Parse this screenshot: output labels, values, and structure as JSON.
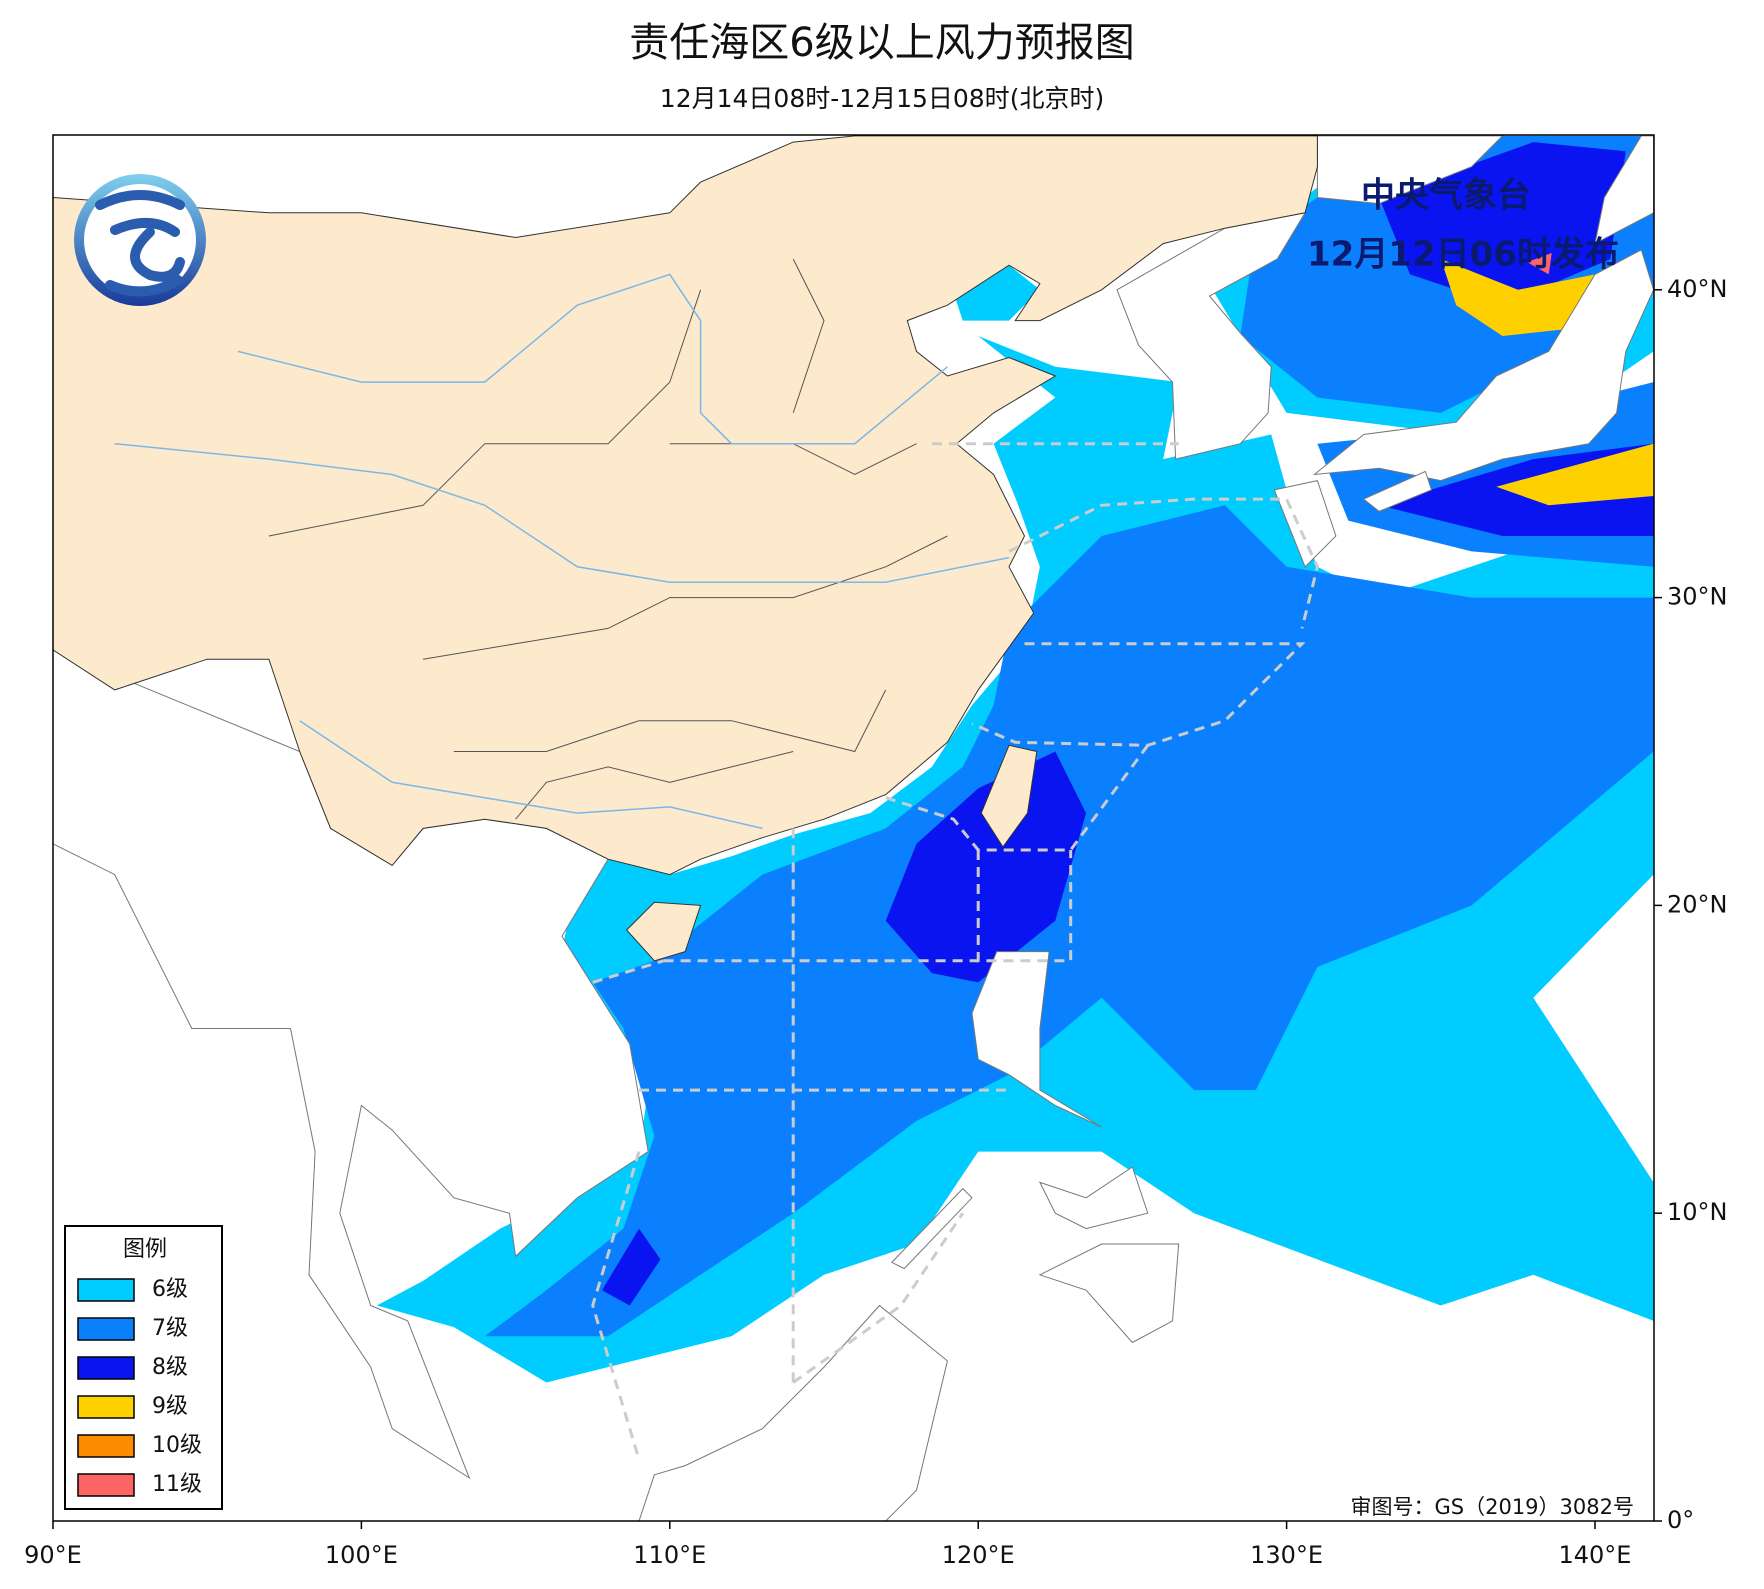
{
  "title": "责任海区6级以上风力预报图",
  "subtitle": "12月14日08时-12月15日08时(北京时)",
  "issuer": "中央气象台",
  "issued": "12月12日06时发布",
  "legend": {
    "title": "图例",
    "items": [
      {
        "label": "6级",
        "color": "#00CCFF"
      },
      {
        "label": "7级",
        "color": "#0A80FF"
      },
      {
        "label": "8级",
        "color": "#0A14F0"
      },
      {
        "label": "9级",
        "color": "#FFD000"
      },
      {
        "label": "10级",
        "color": "#FF8C00"
      },
      {
        "label": "11级",
        "color": "#FF6464"
      }
    ]
  },
  "lon_ticks": [
    {
      "value": 90,
      "label": "90°E"
    },
    {
      "value": 100,
      "label": "100°E"
    },
    {
      "value": 110,
      "label": "110°E"
    },
    {
      "value": 120,
      "label": "120°E"
    },
    {
      "value": 130,
      "label": "130°E"
    },
    {
      "value": 140,
      "label": "140°E"
    }
  ],
  "lat_ticks": [
    {
      "value": 0,
      "label": "0°"
    },
    {
      "value": 10,
      "label": "10°N"
    },
    {
      "value": 20,
      "label": "20°N"
    },
    {
      "value": 30,
      "label": "30°N"
    },
    {
      "value": 40,
      "label": "40°N"
    }
  ],
  "approval": "审图号：GS（2019）3082号"
}
